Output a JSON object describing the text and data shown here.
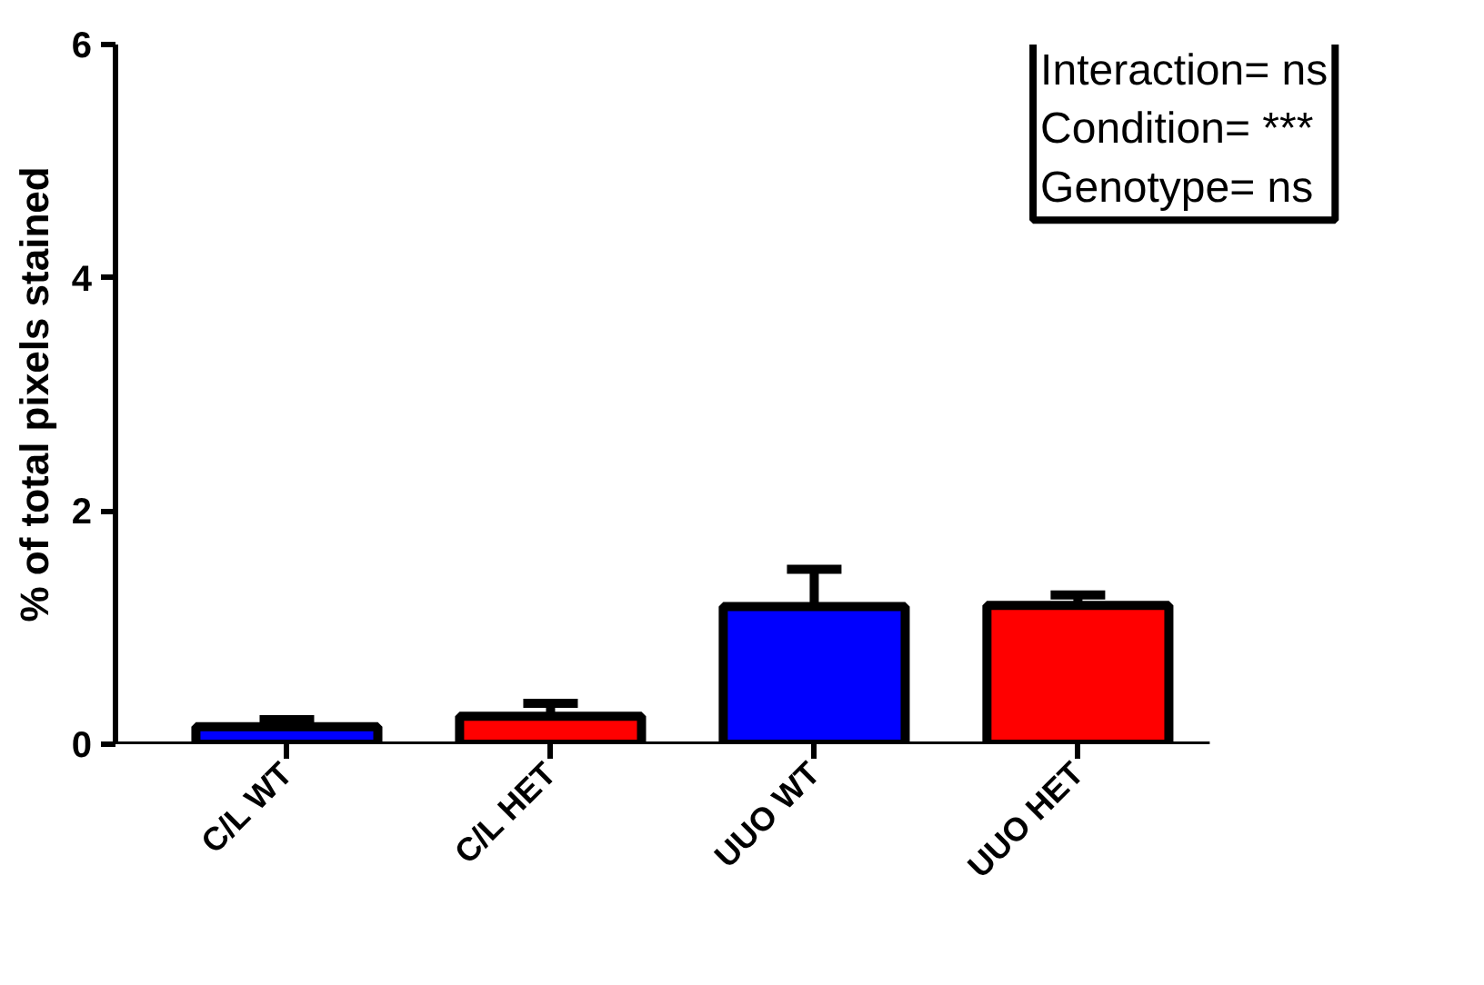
{
  "chart_data": {
    "type": "bar",
    "ylabel": "% of total pixels stained",
    "categories": [
      "C/L WT",
      "C/L HET",
      "UUO WT",
      "UUO HET"
    ],
    "values": [
      0.15,
      0.24,
      1.18,
      1.19
    ],
    "colors": [
      "#0000ff",
      "#ff0000",
      "#0000ff",
      "#ff0000"
    ],
    "errors": [
      [
        0.15,
        0.21
      ],
      [
        0.24,
        0.35
      ],
      [
        1.18,
        1.5
      ],
      [
        1.19,
        1.28
      ]
    ],
    "ylim": [
      0,
      6
    ],
    "yticks": [
      0,
      2,
      4,
      6
    ],
    "grid": false,
    "annotations": [
      "Interaction= ns",
      "Condition= ***",
      "Genotype= ns"
    ]
  }
}
